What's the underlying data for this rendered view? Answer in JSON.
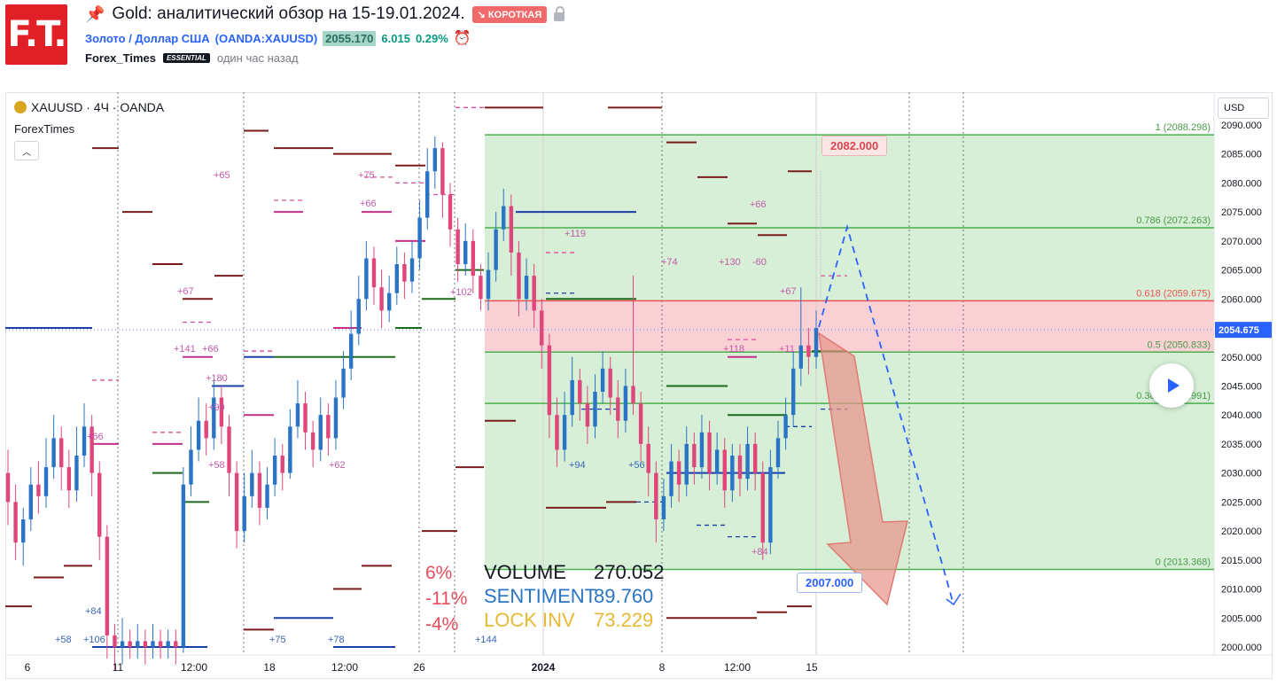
{
  "header": {
    "logo_text": "F.T.",
    "title": "Gold: аналитический обзор на 15-19.01.2024.",
    "direction_badge": "↘ КОРОТКАЯ",
    "symbol_name": "Золото / Доллар США",
    "symbol_code": "(OANDA:XAUUSD)",
    "price": "2055.170",
    "change": "6.015",
    "change_pct": "0.29%",
    "author": "Forex_Times",
    "author_badge": "ESSENTIAL",
    "published": "один час назад"
  },
  "chart_header": {
    "symbol": "XAUUSD · 4Ч · OANDA",
    "indicator": "ForexTimes",
    "currency": "USD"
  },
  "stats": {
    "volume_label": "VOLUME",
    "volume_value": "270.052",
    "sentiment_label": "SENTIMENT",
    "sentiment_value": "89.760",
    "lockinv_label": "LOCK INV",
    "lockinv_value": "73.229",
    "pct1": "6%",
    "pct2": "-11%",
    "pct3": "-4%"
  },
  "callouts": {
    "target_high": "2082.000",
    "target_low": "2007.000"
  },
  "colors": {
    "up": "#2a74c6",
    "down": "#e0457b",
    "fib_zone": "#d6efd6",
    "fib_line": "#4caf50",
    "resistance_zone": "#f9d0d4",
    "resistance_line": "#ef5350",
    "arrow": "#e8938a",
    "projection": "#2962ff"
  },
  "chart_data": {
    "type": "candlestick",
    "ylim": [
      2000,
      2090
    ],
    "y_ticks": [
      "2090.000",
      "2085.000",
      "2080.000",
      "2075.000",
      "2070.000",
      "2065.000",
      "2060.000",
      "2055.000",
      "2050.000",
      "2045.000",
      "2040.000",
      "2035.000",
      "2030.000",
      "2025.000",
      "2020.000",
      "2015.000",
      "2010.000",
      "2005.000",
      "2000.000"
    ],
    "x_ticks": [
      "6",
      "11",
      "12:00",
      "18",
      "12:00",
      "26",
      "2024",
      "8",
      "12:00",
      "15"
    ],
    "last_price": "2054.675",
    "fib_levels": [
      {
        "label": "1 (2088.298)",
        "value": 2088.298
      },
      {
        "label": "0.786 (2072.263)",
        "value": 2072.263
      },
      {
        "label": "0.618 (2059.675)",
        "value": 2059.675
      },
      {
        "label": "0.5 (2050.833)",
        "value": 2050.833
      },
      {
        "label": "0.382 (2041.991)",
        "value": 2041.991
      },
      {
        "label": "0 (2013.368)",
        "value": 2013.368
      }
    ],
    "annotations": [
      "+65",
      "+75",
      "+66",
      "+67",
      "+141",
      "+66",
      "+180",
      "+90",
      "+58",
      "+62",
      "+102",
      "+84",
      "+58",
      "+106",
      "+75",
      "+78",
      "+144",
      "+94",
      "+56",
      "+119",
      "+74",
      "+130",
      "-60",
      "+66",
      "+67",
      "+118",
      "+11",
      "+84",
      "+66"
    ],
    "candles": [
      [
        2030,
        2025,
        2034,
        2021
      ],
      [
        2025,
        2018,
        2028,
        2015
      ],
      [
        2018,
        2022,
        2024,
        2014
      ],
      [
        2022,
        2028,
        2031,
        2020
      ],
      [
        2028,
        2026,
        2032,
        2023
      ],
      [
        2026,
        2031,
        2036,
        2024
      ],
      [
        2031,
        2036,
        2040,
        2029
      ],
      [
        2036,
        2031,
        2038,
        2027
      ],
      [
        2031,
        2027,
        2034,
        2024
      ],
      [
        2027,
        2033,
        2038,
        2025
      ],
      [
        2033,
        2038,
        2042,
        2031
      ],
      [
        2038,
        2030,
        2040,
        2026
      ],
      [
        2030,
        2019,
        2032,
        2015
      ],
      [
        2019,
        2002,
        2021,
        1998
      ],
      [
        2002,
        2000,
        2004,
        1996
      ],
      [
        2000,
        2001,
        2005,
        1997
      ],
      [
        2001,
        2000,
        2003,
        1998
      ],
      [
        2000,
        2001,
        2004,
        1998
      ],
      [
        2001,
        2000,
        2003,
        1997
      ],
      [
        2000,
        2001,
        2004,
        1998
      ],
      [
        2001,
        2000,
        2003,
        1998
      ],
      [
        2000,
        2001,
        2003,
        1998
      ],
      [
        2001,
        2000,
        2003,
        1997
      ],
      [
        2000,
        2028,
        2031,
        1999
      ],
      [
        2028,
        2034,
        2038,
        2026
      ],
      [
        2034,
        2039,
        2043,
        2032
      ],
      [
        2039,
        2036,
        2042,
        2033
      ],
      [
        2036,
        2043,
        2046,
        2034
      ],
      [
        2043,
        2038,
        2045,
        2035
      ],
      [
        2038,
        2030,
        2040,
        2026
      ],
      [
        2030,
        2020,
        2032,
        2017
      ],
      [
        2020,
        2026,
        2030,
        2018
      ],
      [
        2026,
        2030,
        2034,
        2024
      ],
      [
        2030,
        2024,
        2032,
        2021
      ],
      [
        2024,
        2028,
        2031,
        2022
      ],
      [
        2028,
        2033,
        2036,
        2026
      ],
      [
        2033,
        2030,
        2035,
        2027
      ],
      [
        2030,
        2038,
        2041,
        2029
      ],
      [
        2038,
        2042,
        2046,
        2036
      ],
      [
        2042,
        2037,
        2044,
        2034
      ],
      [
        2037,
        2034,
        2039,
        2031
      ],
      [
        2034,
        2040,
        2043,
        2032
      ],
      [
        2040,
        2036,
        2042,
        2033
      ],
      [
        2036,
        2043,
        2046,
        2034
      ],
      [
        2043,
        2048,
        2051,
        2041
      ],
      [
        2048,
        2054,
        2058,
        2046
      ],
      [
        2054,
        2060,
        2064,
        2052
      ],
      [
        2060,
        2067,
        2070,
        2058
      ],
      [
        2067,
        2062,
        2069,
        2059
      ],
      [
        2062,
        2058,
        2065,
        2055
      ],
      [
        2058,
        2061,
        2064,
        2056
      ],
      [
        2061,
        2066,
        2069,
        2059
      ],
      [
        2066,
        2063,
        2068,
        2060
      ],
      [
        2063,
        2067,
        2070,
        2061
      ],
      [
        2067,
        2074,
        2077,
        2065
      ],
      [
        2074,
        2082,
        2086,
        2072
      ],
      [
        2082,
        2086,
        2088,
        2079
      ],
      [
        2086,
        2078,
        2087,
        2074
      ],
      [
        2078,
        2072,
        2080,
        2069
      ],
      [
        2072,
        2066,
        2074,
        2063
      ],
      [
        2066,
        2070,
        2073,
        2064
      ],
      [
        2070,
        2064,
        2072,
        2061
      ],
      [
        2064,
        2060,
        2066,
        2058
      ],
      [
        2060,
        2065,
        2068,
        2058
      ],
      [
        2065,
        2072,
        2075,
        2063
      ],
      [
        2072,
        2076,
        2079,
        2070
      ],
      [
        2076,
        2068,
        2078,
        2064
      ],
      [
        2068,
        2060,
        2070,
        2057
      ],
      [
        2060,
        2064,
        2067,
        2058
      ],
      [
        2064,
        2058,
        2066,
        2055
      ],
      [
        2058,
        2052,
        2060,
        2048
      ],
      [
        2052,
        2040,
        2054,
        2036
      ],
      [
        2040,
        2034,
        2043,
        2031
      ],
      [
        2034,
        2040,
        2044,
        2032
      ],
      [
        2040,
        2046,
        2050,
        2038
      ],
      [
        2046,
        2042,
        2048,
        2039
      ],
      [
        2042,
        2038,
        2045,
        2035
      ],
      [
        2038,
        2044,
        2047,
        2036
      ],
      [
        2044,
        2048,
        2051,
        2042
      ],
      [
        2048,
        2043,
        2050,
        2040
      ],
      [
        2043,
        2039,
        2046,
        2036
      ],
      [
        2039,
        2045,
        2048,
        2037
      ],
      [
        2045,
        2042,
        2064,
        2040
      ],
      [
        2042,
        2035,
        2044,
        2032
      ],
      [
        2035,
        2030,
        2038,
        2026
      ],
      [
        2030,
        2022,
        2032,
        2018
      ],
      [
        2022,
        2026,
        2029,
        2020
      ],
      [
        2026,
        2032,
        2035,
        2024
      ],
      [
        2032,
        2028,
        2034,
        2025
      ],
      [
        2028,
        2035,
        2038,
        2026
      ],
      [
        2035,
        2031,
        2037,
        2028
      ],
      [
        2031,
        2037,
        2040,
        2029
      ],
      [
        2037,
        2030,
        2039,
        2027
      ],
      [
        2030,
        2034,
        2037,
        2028
      ],
      [
        2034,
        2027,
        2036,
        2024
      ],
      [
        2027,
        2033,
        2035,
        2025
      ],
      [
        2033,
        2029,
        2035,
        2026
      ],
      [
        2029,
        2035,
        2038,
        2027
      ],
      [
        2035,
        2030,
        2037,
        2027
      ],
      [
        2030,
        2018,
        2032,
        2015
      ],
      [
        2018,
        2031,
        2034,
        2016
      ],
      [
        2031,
        2036,
        2039,
        2029
      ],
      [
        2036,
        2040,
        2043,
        2034
      ],
      [
        2040,
        2048,
        2051,
        2038
      ],
      [
        2048,
        2052,
        2062,
        2045
      ],
      [
        2052,
        2050,
        2055,
        2047
      ],
      [
        2050,
        2055,
        2058,
        2048
      ]
    ]
  }
}
